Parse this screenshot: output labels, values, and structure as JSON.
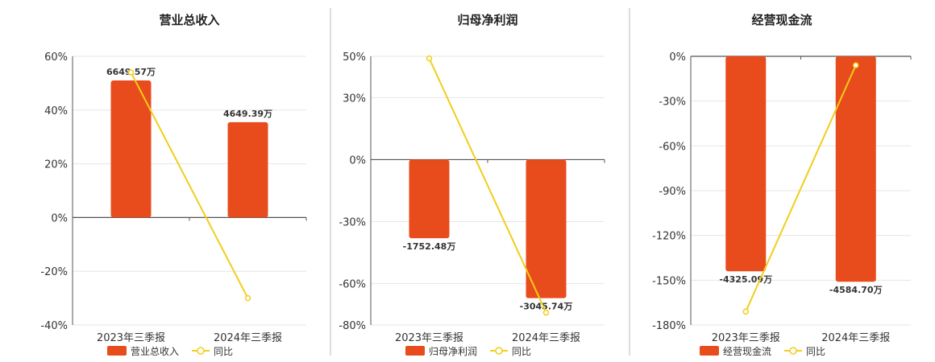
{
  "colors": {
    "bar": "#E84C1C",
    "line": "#F2CE1A",
    "grid": "#e6e6e6",
    "axis": "#555555",
    "divider": "#bbbbbb"
  },
  "chart_data": [
    {
      "type": "bar",
      "title": "营业总收入",
      "categories": [
        "2023年三季报",
        "2024年三季报"
      ],
      "ylim": [
        -40,
        60
      ],
      "yticks": [
        -40,
        -20,
        0,
        20,
        40,
        60
      ],
      "tick_labels": [
        "-40%",
        "-20%",
        "0%",
        "20%",
        "40%",
        "60%"
      ],
      "series": [
        {
          "name": "营业总收入",
          "kind": "bar",
          "values": [
            51,
            35.5
          ],
          "labels": [
            "6649.57万",
            "4649.39万"
          ]
        },
        {
          "name": "同比",
          "kind": "line",
          "values": [
            54,
            -30
          ]
        }
      ],
      "legend": "bottom"
    },
    {
      "type": "bar",
      "title": "归母净利润",
      "categories": [
        "2023年三季报",
        "2024年三季报"
      ],
      "ylim": [
        -80,
        50
      ],
      "yticks": [
        -80,
        -60,
        -30,
        0,
        30,
        50
      ],
      "tick_labels": [
        "-80%",
        "-60%",
        "-30%",
        "0%",
        "30%",
        "50%"
      ],
      "series": [
        {
          "name": "归母净利润",
          "kind": "bar",
          "values": [
            -38,
            -67
          ],
          "labels": [
            "-1752.48万",
            "-3045.74万"
          ]
        },
        {
          "name": "同比",
          "kind": "line",
          "values": [
            49,
            -74
          ]
        }
      ],
      "legend": "bottom"
    },
    {
      "type": "bar",
      "title": "经营现金流",
      "categories": [
        "2023年三季报",
        "2024年三季报"
      ],
      "ylim": [
        -180,
        0
      ],
      "yticks": [
        -180,
        -150,
        -120,
        -90,
        -60,
        -30,
        0
      ],
      "tick_labels": [
        "-180%",
        "-150%",
        "-120%",
        "-90%",
        "-60%",
        "-30%",
        "0%"
      ],
      "series": [
        {
          "name": "经营现金流",
          "kind": "bar",
          "values": [
            -144,
            -151
          ],
          "labels": [
            "-4325.09万",
            "-4584.70万"
          ]
        },
        {
          "name": "同比",
          "kind": "line",
          "values": [
            -171,
            -6
          ]
        }
      ],
      "legend": "bottom"
    }
  ]
}
